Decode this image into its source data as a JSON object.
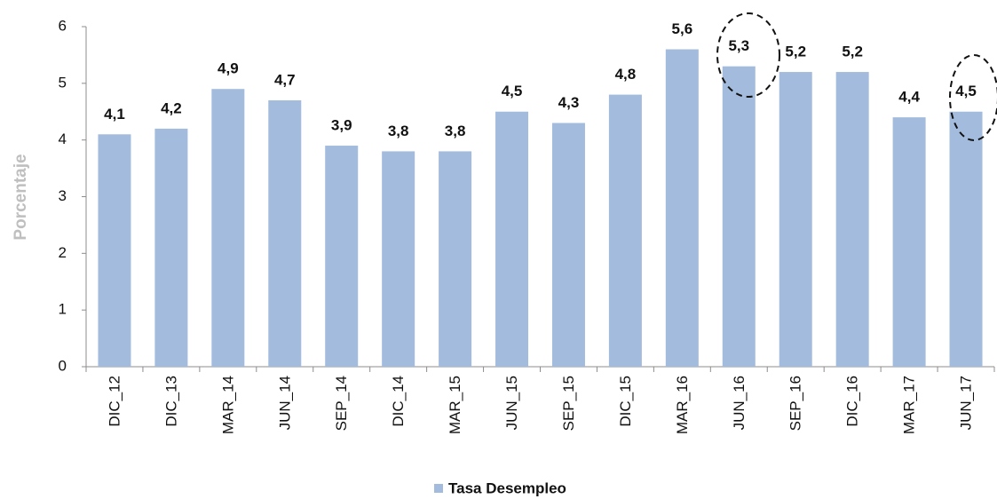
{
  "chart_data": {
    "type": "bar",
    "categories": [
      "DIC_12",
      "DIC_13",
      "MAR_14",
      "JUN_14",
      "SEP_14",
      "DIC_14",
      "MAR_15",
      "JUN_15",
      "SEP_15",
      "DIC_15",
      "MAR_16",
      "JUN_16",
      "SEP_16",
      "DIC_16",
      "MAR_17",
      "JUN_17"
    ],
    "values": [
      4.1,
      4.2,
      4.9,
      4.7,
      3.9,
      3.8,
      3.8,
      4.5,
      4.3,
      4.8,
      5.6,
      5.3,
      5.2,
      5.2,
      4.4,
      4.5
    ],
    "value_labels": [
      "4,1",
      "4,2",
      "4,9",
      "4,7",
      "3,9",
      "3,8",
      "3,8",
      "4,5",
      "4,3",
      "4,8",
      "5,6",
      "5,3",
      "5,2",
      "5,2",
      "4,4",
      "4,5"
    ],
    "color": "#a3bbdc",
    "y_label": "Porcentaje",
    "series_name": "Tasa Desempleo",
    "ylim": [
      0,
      6
    ],
    "yticks": [
      0,
      1,
      2,
      3,
      4,
      5,
      6
    ],
    "grid": false
  }
}
